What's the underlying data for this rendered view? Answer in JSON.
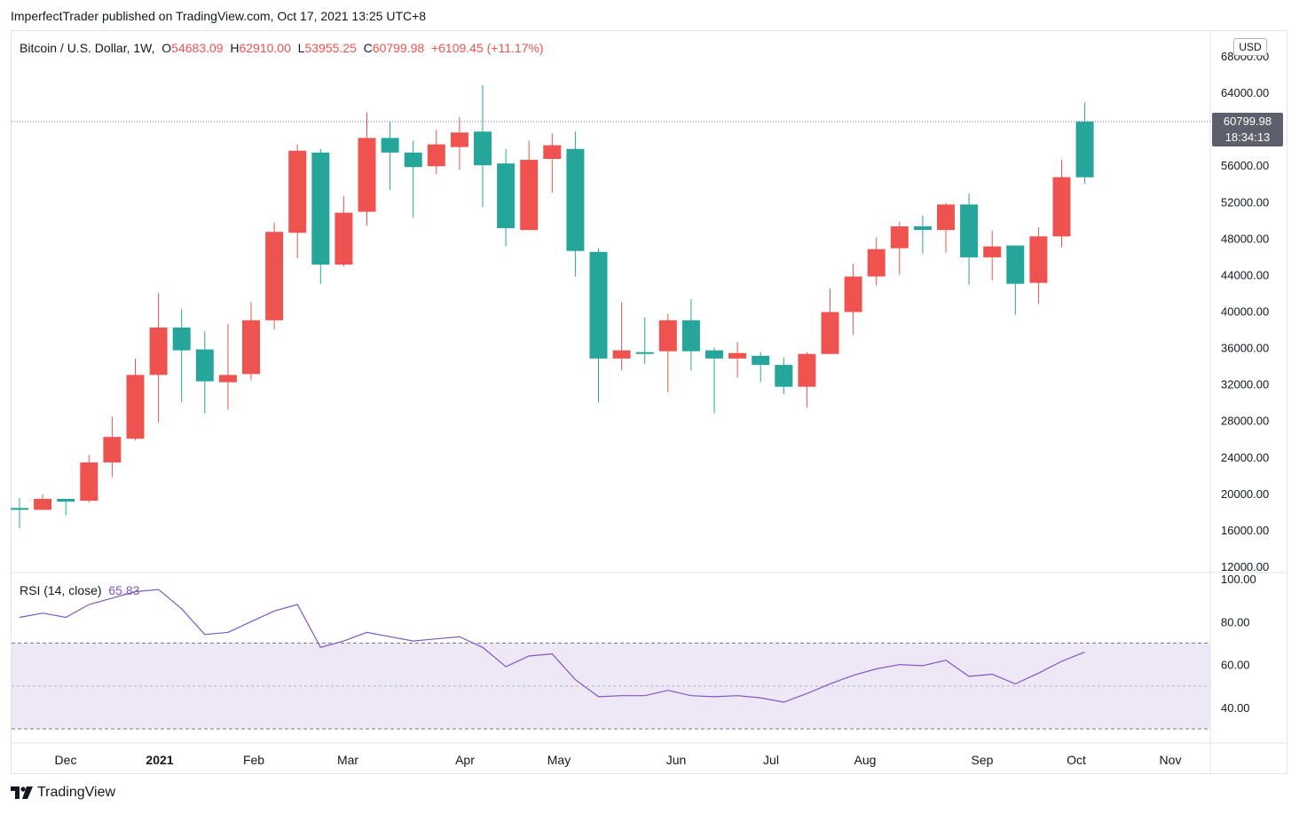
{
  "header": {
    "publisher_line": "ImperfectTrader published on TradingView.com, Oct 17, 2021 13:25 UTC+8"
  },
  "legend": {
    "symbol": "Bitcoin / U.S. Dollar, 1W,",
    "open_label": "O",
    "open": "54683.09",
    "high_label": "H",
    "high": "62910.00",
    "low_label": "L",
    "low": "53955.25",
    "close_label": "C",
    "close": "60799.98",
    "change": "+6109.45 (+11.17%)"
  },
  "rsi_legend": {
    "label": "RSI (14, close)",
    "value": "65.83"
  },
  "currency_badge": "USD",
  "last_price": {
    "price": "60799.98",
    "countdown": "18:34:13"
  },
  "footer": {
    "brand": "TradingView"
  },
  "colors": {
    "up": "#26a69a",
    "down": "#ef5350",
    "rsi": "#7e57c2",
    "rsi_band": "#ede7f6",
    "grid": "#e0e3eb"
  },
  "chart_data": [
    {
      "type": "candlestick",
      "ylim": [
        12000,
        68000
      ],
      "yticks": [
        "68000.00",
        "64000.00",
        "60000.00",
        "56000.00",
        "52000.00",
        "48000.00",
        "44000.00",
        "40000.00",
        "36000.00",
        "32000.00",
        "28000.00",
        "24000.00",
        "20000.00",
        "16000.00",
        "12000.00"
      ],
      "xtick_labels": [
        "Dec",
        "2021",
        "Feb",
        "Mar",
        "Apr",
        "May",
        "Jun",
        "Jul",
        "Aug",
        "Sep",
        "Oct",
        "Nov"
      ],
      "last_price_line": 60799.98,
      "candles": [
        {
          "o": 18200,
          "h": 19500,
          "l": 16200,
          "c": 18400
        },
        {
          "o": 19400,
          "h": 19900,
          "l": 18200,
          "c": 18200
        },
        {
          "o": 19100,
          "h": 19400,
          "l": 17600,
          "c": 19400
        },
        {
          "o": 23400,
          "h": 24200,
          "l": 19000,
          "c": 19200
        },
        {
          "o": 26200,
          "h": 28400,
          "l": 21800,
          "c": 23400
        },
        {
          "o": 33000,
          "h": 34800,
          "l": 25800,
          "c": 26000
        },
        {
          "o": 38200,
          "h": 42000,
          "l": 27800,
          "c": 33000
        },
        {
          "o": 35700,
          "h": 40200,
          "l": 30000,
          "c": 38200
        },
        {
          "o": 32300,
          "h": 37800,
          "l": 28800,
          "c": 35800
        },
        {
          "o": 33000,
          "h": 38600,
          "l": 29200,
          "c": 32200
        },
        {
          "o": 39000,
          "h": 41000,
          "l": 32400,
          "c": 33100
        },
        {
          "o": 48700,
          "h": 49700,
          "l": 38000,
          "c": 39000
        },
        {
          "o": 57600,
          "h": 58300,
          "l": 45800,
          "c": 48600
        },
        {
          "o": 45100,
          "h": 57800,
          "l": 43000,
          "c": 57400
        },
        {
          "o": 50800,
          "h": 52600,
          "l": 44900,
          "c": 45100
        },
        {
          "o": 59000,
          "h": 61800,
          "l": 49400,
          "c": 50900
        },
        {
          "o": 57400,
          "h": 60800,
          "l": 53300,
          "c": 59000
        },
        {
          "o": 55800,
          "h": 58700,
          "l": 50300,
          "c": 57400
        },
        {
          "o": 58300,
          "h": 59900,
          "l": 55000,
          "c": 55900
        },
        {
          "o": 59600,
          "h": 61300,
          "l": 55500,
          "c": 58000
        },
        {
          "o": 56000,
          "h": 64800,
          "l": 51400,
          "c": 59700
        },
        {
          "o": 49100,
          "h": 57800,
          "l": 47100,
          "c": 56200
        },
        {
          "o": 56600,
          "h": 58700,
          "l": 48900,
          "c": 48900
        },
        {
          "o": 58200,
          "h": 59500,
          "l": 53000,
          "c": 56700
        },
        {
          "o": 46600,
          "h": 59700,
          "l": 43800,
          "c": 57800
        },
        {
          "o": 34800,
          "h": 46900,
          "l": 30000,
          "c": 46500
        },
        {
          "o": 35700,
          "h": 41000,
          "l": 33500,
          "c": 34800
        },
        {
          "o": 35500,
          "h": 39300,
          "l": 34200,
          "c": 35500
        },
        {
          "o": 39000,
          "h": 39700,
          "l": 31100,
          "c": 35600
        },
        {
          "o": 35600,
          "h": 41300,
          "l": 33500,
          "c": 39000
        },
        {
          "o": 34800,
          "h": 36000,
          "l": 28800,
          "c": 35700
        },
        {
          "o": 35400,
          "h": 36600,
          "l": 32700,
          "c": 34800
        },
        {
          "o": 34100,
          "h": 35500,
          "l": 32200,
          "c": 35100
        },
        {
          "o": 31700,
          "h": 34900,
          "l": 30900,
          "c": 34100
        },
        {
          "o": 35300,
          "h": 35500,
          "l": 29400,
          "c": 31700
        },
        {
          "o": 39900,
          "h": 42500,
          "l": 35300,
          "c": 35300
        },
        {
          "o": 43800,
          "h": 45200,
          "l": 37400,
          "c": 39900
        },
        {
          "o": 46800,
          "h": 48100,
          "l": 42800,
          "c": 43800
        },
        {
          "o": 49300,
          "h": 49800,
          "l": 44000,
          "c": 46900
        },
        {
          "o": 48900,
          "h": 50500,
          "l": 46300,
          "c": 49300
        },
        {
          "o": 51700,
          "h": 51900,
          "l": 46400,
          "c": 48900
        },
        {
          "o": 45900,
          "h": 52900,
          "l": 42900,
          "c": 51700
        },
        {
          "o": 47100,
          "h": 48800,
          "l": 43400,
          "c": 45900
        },
        {
          "o": 43000,
          "h": 47100,
          "l": 39600,
          "c": 47200
        },
        {
          "o": 48200,
          "h": 49200,
          "l": 40800,
          "c": 43100
        },
        {
          "o": 54700,
          "h": 56600,
          "l": 47000,
          "c": 48200
        },
        {
          "o": 54683.09,
          "h": 62910,
          "l": 53955.25,
          "c": 60799.98
        }
      ]
    },
    {
      "type": "line",
      "title": "RSI (14, close)",
      "ylim": [
        22,
        100
      ],
      "yticks": [
        "100.00",
        "80.00",
        "60.00",
        "40.00"
      ],
      "band": [
        30,
        70
      ],
      "midline": 50,
      "values": [
        82,
        84,
        82,
        88,
        91,
        94,
        95,
        86,
        74,
        75,
        80,
        85,
        88,
        68,
        71,
        75,
        73,
        71,
        72,
        73,
        68,
        59,
        64,
        65,
        53,
        45,
        45.5,
        45.5,
        48,
        45.5,
        45,
        45.5,
        44.5,
        42.5,
        46.5,
        51,
        55,
        58,
        60,
        59.5,
        62,
        54.5,
        55.5,
        51,
        56,
        61.5,
        65.83
      ]
    }
  ]
}
